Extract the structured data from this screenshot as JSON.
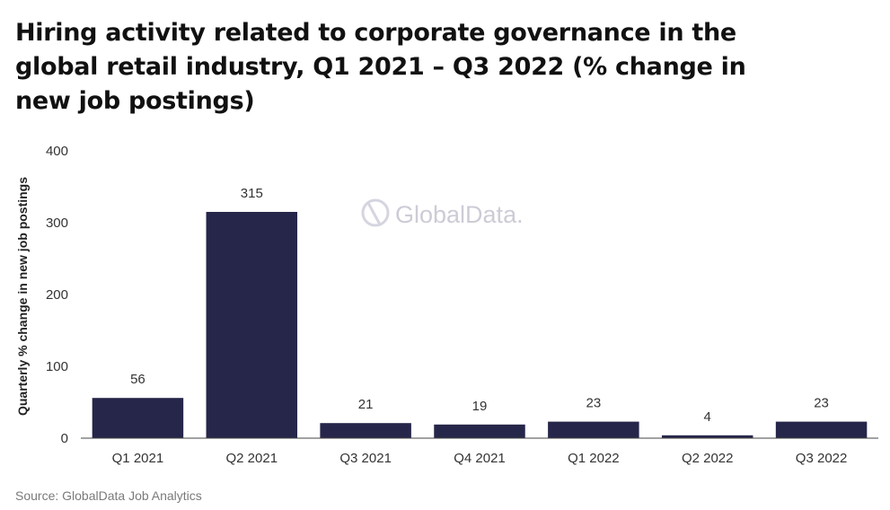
{
  "chart_data": {
    "type": "bar",
    "title": "Hiring activity related to corporate governance in the global retail industry, Q1 2021 – Q3 2022 (% change in new job postings)",
    "ylabel": "Quarterly % change in new job postings",
    "xlabel": "",
    "categories": [
      "Q1 2021",
      "Q2 2021",
      "Q3 2021",
      "Q4 2021",
      "Q1 2022",
      "Q2 2022",
      "Q3 2022"
    ],
    "values": [
      56,
      315,
      21,
      19,
      23,
      4,
      23
    ],
    "ylim": [
      0,
      400
    ],
    "yticks": [
      0,
      100,
      200,
      300,
      400
    ],
    "grid": false,
    "bar_color": "#26264a"
  },
  "watermark": "GlobalData.",
  "source": "Source: GlobalData Job Analytics"
}
